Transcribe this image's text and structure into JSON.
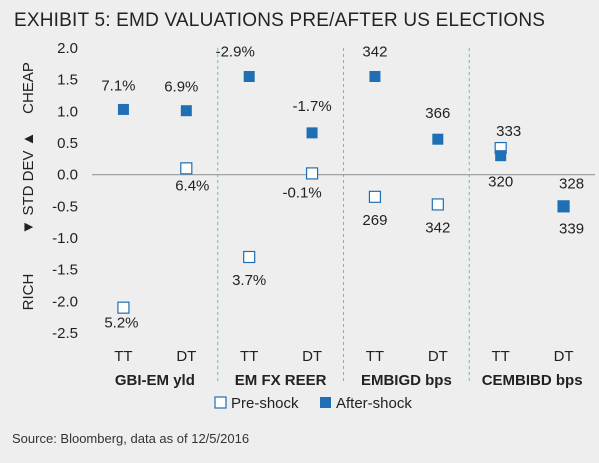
{
  "title": "EXHIBIT 5: EMD VALUATIONS PRE/AFTER US ELECTIONS",
  "source": "Source: Bloomberg, data as of 12/5/2016",
  "colors": {
    "after_shock": "#1f6fb5",
    "pre_shock_border": "#1f6fb5",
    "pre_shock_fill": "#ffffff",
    "divider": "#5bc0c8",
    "zero_line": "#999999",
    "axis_text": "#222222"
  },
  "chart_data": {
    "type": "scatter",
    "title": "EXHIBIT 5: EMD VALUATIONS PRE/AFTER US ELECTIONS",
    "ylabel_parts": {
      "top": "CHEAP",
      "middle": "▼ STD DEV ▲",
      "bottom": "RICH"
    },
    "ylim": [
      -2.5,
      2.0
    ],
    "yticks": [
      "2.0",
      "1.5",
      "1.0",
      "0.5",
      "0.0",
      "-0.5",
      "-1.0",
      "-1.5",
      "-2.0",
      "-2.5"
    ],
    "ytick_values": [
      2.0,
      1.5,
      1.0,
      0.5,
      0.0,
      -0.5,
      -1.0,
      -1.5,
      -2.0,
      -2.5
    ],
    "categories": [
      "TT",
      "DT",
      "TT",
      "DT",
      "TT",
      "DT",
      "TT",
      "DT"
    ],
    "groups": [
      "GBI-EM yld",
      "EM FX REER",
      "EMBIGD bps",
      "CEMBIBD bps"
    ],
    "legend": {
      "placement": "bottom-center",
      "pre_label": "Pre-shock",
      "after_label": "After-shock"
    },
    "series": [
      {
        "name": "Pre-shock",
        "values": [
          -2.1,
          0.1,
          -1.3,
          0.02,
          -0.35,
          -0.47,
          0.42,
          -0.5
        ],
        "labels": [
          "5.2%",
          "6.4%",
          "3.7%",
          "-0.1%",
          "269",
          "342",
          "333",
          "339"
        ]
      },
      {
        "name": "After-shock",
        "values": [
          1.03,
          1.01,
          1.55,
          0.66,
          1.55,
          0.56,
          0.3,
          -0.5
        ],
        "labels": [
          "7.1%",
          "6.9%",
          "-2.9%",
          "-1.7%",
          "342",
          "366",
          "320",
          "328"
        ]
      }
    ]
  }
}
